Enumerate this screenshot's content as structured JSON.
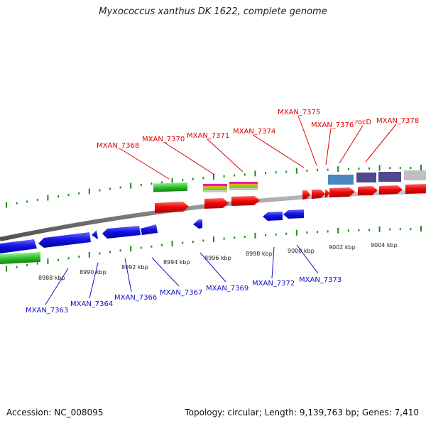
{
  "title": "Myxococcus xanthus DK 1622, complete genome",
  "footer": {
    "accession": "Accession: NC_008095",
    "meta": "Topology: circular; Length: 9,139,763 bp; Genes: 7,410"
  },
  "colors": {
    "forward": "#e8001a",
    "reverse": "#1a1adc",
    "rna": "#3cc83c",
    "backbone": "#808080",
    "tick": "#1a8a1a",
    "label_forward": "#e00000",
    "label_reverse": "#1010c8"
  },
  "kbp_ticks": [
    "8988 kbp",
    "8990 kbp",
    "8992 kbp",
    "8994 kbp",
    "8996 kbp",
    "8998 kbp",
    "9000 kbp",
    "9002 kbp",
    "9004 kbp"
  ],
  "forward_labels": [
    "MXAN_7368",
    "MXAN_7370",
    "MXAN_7371",
    "MXAN_7374",
    "MXAN_7375",
    "MXAN_7376",
    "rocD",
    "MXAN_7378"
  ],
  "reverse_labels": [
    "MXAN_7363",
    "MXAN_7364",
    "MXAN_7366",
    "MXAN_7367",
    "MXAN_7369",
    "MXAN_7372",
    "MXAN_7373"
  ]
}
